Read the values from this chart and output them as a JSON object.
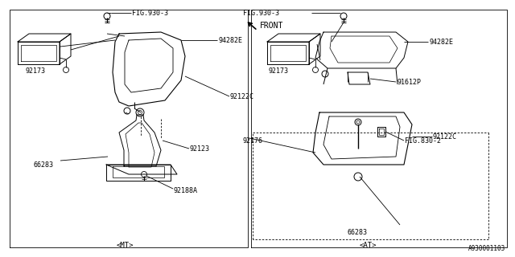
{
  "bg_color": "#ffffff",
  "line_color": "#000000",
  "fig_width": 6.4,
  "fig_height": 3.2,
  "dpi": 100,
  "labels": {
    "FIG930_3_left": "FIG.930-3",
    "94282E_left": "94282E",
    "92122C_left": "92122C",
    "92173_left": "92173",
    "92123": "92123",
    "66283_left": "66283",
    "92188A": "92188A",
    "MT": "<MT>",
    "FIG930_3_right": "FIG.930-3",
    "94282E_right": "94282E",
    "91612P": "91612P",
    "FIG830_2": "FIG.830-2",
    "92122C_right": "92122C",
    "92173_right": "92173",
    "92176": "92176",
    "66283_right": "66283",
    "AT": "<AT>",
    "FRONT": "FRONT",
    "watermark": "A930001103"
  },
  "font_size": 6.0,
  "small_font": 5.5
}
